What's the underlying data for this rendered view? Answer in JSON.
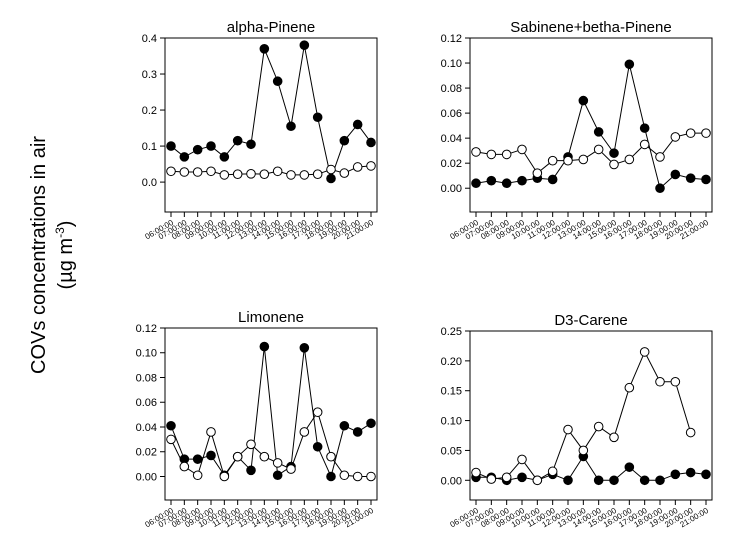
{
  "y_label": "COVs concentrations in air",
  "y_label_unit": "(µg m",
  "y_label_unit_exp": "-3",
  "y_label_unit_end": ")",
  "chart_data": [
    {
      "type": "line",
      "title": "alpha-Pinene",
      "categories": [
        "06:00:00",
        "07:00:00",
        "08:00:00",
        "09:00:00",
        "10:00:00",
        "11:00:00",
        "12:00:00",
        "13:00:00",
        "14:00:00",
        "15:00:00",
        "16:00:00",
        "17:00:00",
        "18:00:00",
        "19:00:00",
        "20:00:00",
        "21:00:00"
      ],
      "series": [
        {
          "color": "#000000",
          "marker_fill": "#000000",
          "values": [
            0.1,
            0.07,
            0.09,
            0.1,
            0.07,
            0.115,
            0.105,
            0.37,
            0.28,
            0.155,
            0.38,
            0.18,
            0.01,
            0.115,
            0.16,
            0.11
          ]
        },
        {
          "color": "#000000",
          "marker_fill": "#ffffff",
          "values": [
            0.03,
            0.028,
            0.028,
            0.03,
            0.02,
            0.022,
            0.023,
            0.022,
            0.03,
            0.02,
            0.02,
            0.022,
            0.035,
            0.025,
            0.042,
            0.045
          ]
        }
      ],
      "ylim": [
        -0.083,
        0.4
      ],
      "yticks": [
        {
          "value": 0,
          "label": "0.0"
        },
        0.1,
        0.2,
        0.3,
        0.4
      ]
    },
    {
      "type": "line",
      "title": "Sabinene+betha-Pinene",
      "categories": [
        "06:00:00",
        "07:00:00",
        "08:00:00",
        "09:00:00",
        "10:00:00",
        "11:00:00",
        "12:00:00",
        "13:00:00",
        "14:00:00",
        "15:00:00",
        "16:00:00",
        "17:00:00",
        "18:00:00",
        "19:00:00",
        "20:00:00",
        "21:00:00"
      ],
      "series": [
        {
          "color": "#000000",
          "marker_fill": "#000000",
          "values": [
            0.004,
            0.006,
            0.004,
            0.006,
            0.008,
            0.007,
            0.025,
            0.07,
            0.045,
            0.028,
            0.099,
            0.048,
            0.0,
            0.011,
            0.008,
            0.007
          ]
        },
        {
          "color": "#000000",
          "marker_fill": "#ffffff",
          "values": [
            0.029,
            0.027,
            0.027,
            0.031,
            0.012,
            0.022,
            0.022,
            0.023,
            0.031,
            0.019,
            0.023,
            0.035,
            0.025,
            0.041,
            0.044,
            0.044
          ]
        }
      ],
      "ylim": [
        -0.019,
        0.12
      ],
      "yticks": [
        {
          "value": 0,
          "label": "0.00"
        },
        {
          "value": 0.02,
          "label": "0.02"
        },
        {
          "value": 0.04,
          "label": "0.04"
        },
        {
          "value": 0.06,
          "label": "0.06"
        },
        {
          "value": 0.08,
          "label": "0.08"
        },
        {
          "value": 0.1,
          "label": "0.10"
        },
        {
          "value": 0.12,
          "label": "0.12"
        }
      ]
    },
    {
      "type": "line",
      "title": "Limonene",
      "categories": [
        "06:00:00",
        "07:00:00",
        "08:00:00",
        "09:00:00",
        "10:00:00",
        "11:00:00",
        "12:00:00",
        "13:00:00",
        "14:00:00",
        "15:00:00",
        "16:00:00",
        "17:00:00",
        "18:00:00",
        "19:00:00",
        "20:00:00",
        "21:00:00"
      ],
      "series": [
        {
          "color": "#000000",
          "marker_fill": "#000000",
          "values": [
            0.041,
            0.014,
            0.014,
            0.017,
            0.001,
            0.016,
            0.005,
            0.105,
            0.001,
            0.008,
            0.104,
            0.024,
            0.0,
            0.041,
            0.036,
            0.043
          ]
        },
        {
          "color": "#000000",
          "marker_fill": "#ffffff",
          "values": [
            0.03,
            0.008,
            0.001,
            0.036,
            0.0,
            0.016,
            0.026,
            0.016,
            0.011,
            0.006,
            0.036,
            0.052,
            0.016,
            0.001,
            0.0,
            0.0
          ]
        }
      ],
      "ylim": [
        -0.019,
        0.12
      ],
      "yticks": [
        {
          "value": 0,
          "label": "0.00"
        },
        {
          "value": 0.02,
          "label": "0.02"
        },
        {
          "value": 0.04,
          "label": "0.04"
        },
        {
          "value": 0.06,
          "label": "0.06"
        },
        {
          "value": 0.08,
          "label": "0.08"
        },
        {
          "value": 0.1,
          "label": "0.10"
        },
        {
          "value": 0.12,
          "label": "0.12"
        }
      ]
    },
    {
      "type": "line",
      "title": "D3-Carene",
      "categories": [
        "06:00:00",
        "07:00:00",
        "08:00:00",
        "09:00:00",
        "10:00:00",
        "11:00:00",
        "12:00:00",
        "13:00:00",
        "14:00:00",
        "15:00:00",
        "16:00:00",
        "17:00:00",
        "18:00:00",
        "19:00:00",
        "20:00:00",
        "21:00:00"
      ],
      "series": [
        {
          "color": "#000000",
          "marker_fill": "#000000",
          "values": [
            0.005,
            0.005,
            0.0,
            0.005,
            0.0,
            0.01,
            0.0,
            0.04,
            0.0,
            0.0,
            0.022,
            0.0,
            0.0,
            0.01,
            0.013,
            0.01
          ]
        },
        {
          "color": "#000000",
          "marker_fill": "#ffffff",
          "values": [
            0.013,
            0.002,
            0.005,
            0.035,
            0.0,
            0.015,
            0.085,
            0.05,
            0.09,
            0.072,
            0.155,
            0.215,
            0.165,
            0.165,
            0.08,
            null
          ]
        }
      ],
      "ylim": [
        -0.033,
        0.25
      ],
      "yticks": [
        {
          "value": 0,
          "label": "0.00"
        },
        {
          "value": 0.05,
          "label": "0.05"
        },
        {
          "value": 0.1,
          "label": "0.10"
        },
        {
          "value": 0.15,
          "label": "0.15"
        },
        {
          "value": 0.2,
          "label": "0.20"
        },
        {
          "value": 0.25,
          "label": "0.25"
        }
      ]
    }
  ]
}
